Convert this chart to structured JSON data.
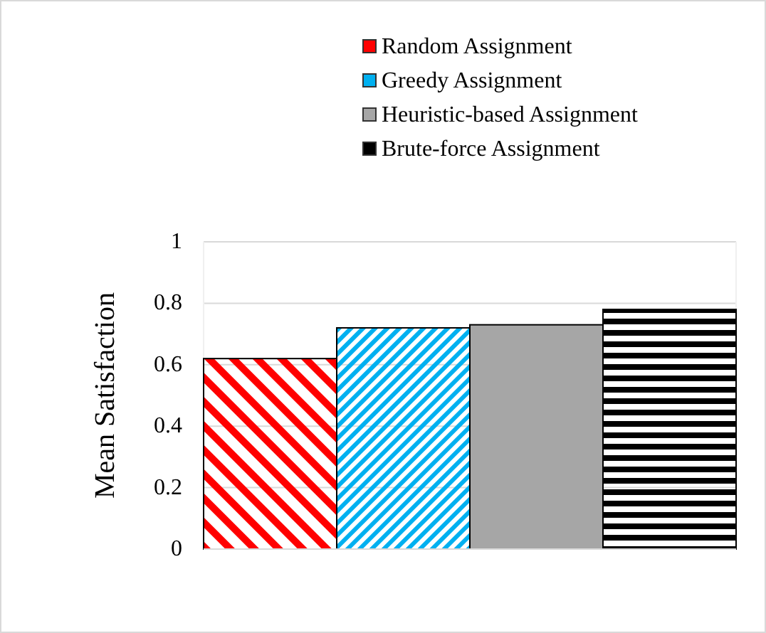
{
  "chart_data": {
    "type": "bar",
    "ylabel": "Mean Satisfaction",
    "categories": [
      null
    ],
    "series": [
      {
        "name": "Random Assignment",
        "color": "#ff0000",
        "values": [
          0.62
        ]
      },
      {
        "name": "Greedy Assignment",
        "color": "#00b0f0",
        "values": [
          0.72
        ]
      },
      {
        "name": "Heuristic-based Assignment",
        "color": "#a6a6a6",
        "values": [
          0.73
        ]
      },
      {
        "name": "Brute-force Assignment",
        "color": "#000000",
        "values": [
          0.78
        ]
      }
    ],
    "ylim": [
      0,
      1
    ],
    "yticks": [
      0,
      0.2,
      0.4,
      0.6,
      0.8,
      1
    ],
    "grid": "y",
    "legend": "top"
  }
}
